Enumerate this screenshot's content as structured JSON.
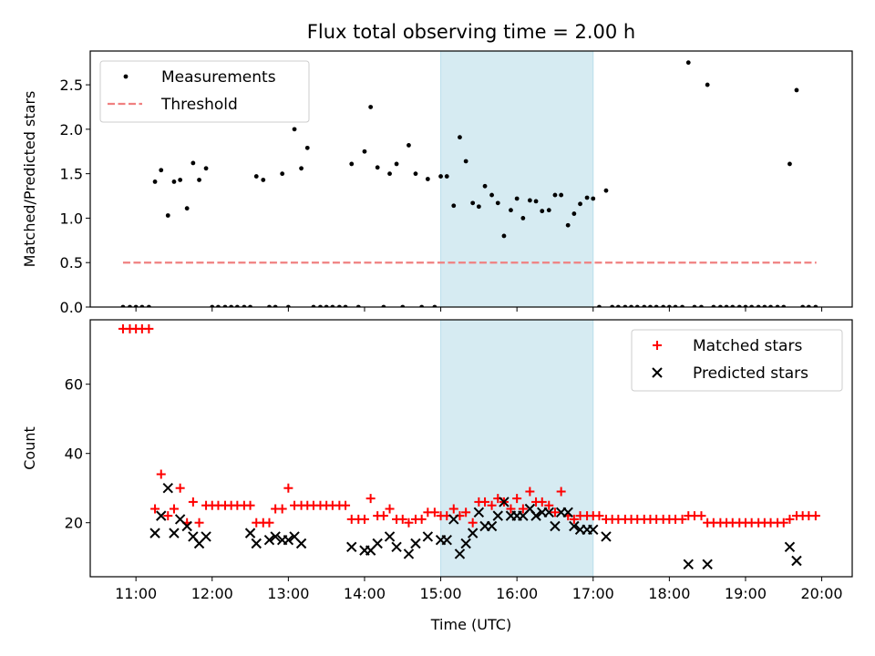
{
  "title": "Flux total observing time = 2.00 h",
  "chart_data": [
    {
      "id": "ratio",
      "type": "scatter",
      "ylabel": "Matched/Predicted stars",
      "xlabel": "",
      "xlim": [
        10.4,
        20.4
      ],
      "ylim": [
        0,
        2.88
      ],
      "yticks": [
        0.0,
        0.5,
        1.0,
        1.5,
        2.0,
        2.5
      ],
      "ytick_labels": [
        "0.0",
        "0.5",
        "1.0",
        "1.5",
        "2.0",
        "2.5"
      ],
      "shaded_region": [
        15.0,
        17.0
      ],
      "legend_position": "top-left",
      "legend": [
        "Measurements",
        "Threshold"
      ],
      "threshold": {
        "name": "Threshold",
        "y": 0.5,
        "x": [
          10.83,
          19.93
        ],
        "color": "#f08080"
      },
      "series": [
        {
          "name": "Measurements",
          "color": "#000000",
          "x": [
            10.83,
            10.92,
            11.0,
            11.08,
            11.17,
            11.25,
            11.33,
            11.42,
            11.5,
            11.58,
            11.67,
            11.75,
            11.83,
            11.92,
            12.0,
            12.08,
            12.17,
            12.25,
            12.33,
            12.42,
            12.5,
            12.58,
            12.67,
            12.75,
            12.83,
            12.92,
            13.0,
            13.08,
            13.17,
            13.25,
            13.33,
            13.42,
            13.5,
            13.58,
            13.67,
            13.75,
            13.83,
            13.92,
            14.0,
            14.08,
            14.17,
            14.25,
            14.33,
            14.42,
            14.5,
            14.58,
            14.67,
            14.75,
            14.83,
            14.92,
            15.0,
            15.08,
            15.17,
            15.25,
            15.33,
            15.42,
            15.5,
            15.58,
            15.67,
            15.75,
            15.83,
            15.92,
            16.0,
            16.08,
            16.17,
            16.25,
            16.33,
            16.42,
            16.5,
            16.58,
            16.67,
            16.75,
            16.83,
            16.92,
            17.0,
            17.08,
            17.17,
            17.25,
            17.33,
            17.42,
            17.5,
            17.58,
            17.67,
            17.75,
            17.83,
            17.92,
            18.0,
            18.08,
            18.17,
            18.25,
            18.33,
            18.42,
            18.5,
            18.58,
            18.67,
            18.75,
            18.83,
            18.92,
            19.0,
            19.08,
            19.17,
            19.25,
            19.33,
            19.42,
            19.5,
            19.58,
            19.67,
            19.75,
            19.83,
            19.92
          ],
          "y": [
            0,
            0,
            0,
            0,
            0,
            1.41,
            1.54,
            1.03,
            1.41,
            1.43,
            1.11,
            1.62,
            1.43,
            1.56,
            0,
            0,
            0,
            0,
            0,
            0,
            0,
            1.47,
            1.43,
            0,
            0,
            1.5,
            0,
            2.0,
            1.56,
            1.79,
            0,
            0,
            0,
            0,
            0,
            0,
            1.61,
            0,
            1.75,
            2.25,
            1.57,
            0,
            1.5,
            1.61,
            0,
            1.82,
            1.5,
            0,
            1.44,
            0,
            1.47,
            1.47,
            1.14,
            1.91,
            1.64,
            1.17,
            1.13,
            1.36,
            1.26,
            1.17,
            0.8,
            1.09,
            1.22,
            1.0,
            1.2,
            1.19,
            1.08,
            1.09,
            1.26,
            1.26,
            0.92,
            1.05,
            1.16,
            1.23,
            1.22,
            0,
            1.31,
            0,
            0,
            0,
            0,
            0,
            0,
            0,
            0,
            0,
            0,
            0,
            0,
            2.75,
            0,
            0,
            2.5,
            0,
            0,
            0,
            0,
            0,
            0,
            0,
            0,
            0,
            0,
            0,
            0,
            1.61,
            2.44,
            0,
            0,
            0
          ]
        }
      ]
    },
    {
      "id": "counts",
      "type": "scatter",
      "ylabel": "Count",
      "xlabel": "Time (UTC)",
      "xlim": [
        10.4,
        20.4
      ],
      "ylim": [
        4.4,
        78.6
      ],
      "yticks": [
        20,
        40,
        60
      ],
      "ytick_labels": [
        "20",
        "40",
        "60"
      ],
      "xticks": [
        11,
        12,
        13,
        14,
        15,
        16,
        17,
        18,
        19,
        20
      ],
      "xtick_labels": [
        "11:00",
        "12:00",
        "13:00",
        "14:00",
        "15:00",
        "16:00",
        "17:00",
        "18:00",
        "19:00",
        "20:00"
      ],
      "shaded_region": [
        15.0,
        17.0
      ],
      "legend_position": "top-right",
      "legend": [
        "Matched stars",
        "Predicted stars"
      ],
      "series": [
        {
          "name": "Matched stars",
          "marker": "plus",
          "color": "#ff0000",
          "x": [
            10.83,
            10.92,
            11.0,
            11.08,
            11.17,
            11.25,
            11.33,
            11.42,
            11.5,
            11.58,
            11.67,
            11.75,
            11.83,
            11.92,
            12.0,
            12.08,
            12.17,
            12.25,
            12.33,
            12.42,
            12.5,
            12.58,
            12.67,
            12.75,
            12.83,
            12.92,
            13.0,
            13.08,
            13.17,
            13.25,
            13.33,
            13.42,
            13.5,
            13.58,
            13.67,
            13.75,
            13.83,
            13.92,
            14.0,
            14.08,
            14.17,
            14.25,
            14.33,
            14.42,
            14.5,
            14.58,
            14.67,
            14.75,
            14.83,
            14.92,
            15.0,
            15.08,
            15.17,
            15.25,
            15.33,
            15.42,
            15.5,
            15.58,
            15.67,
            15.75,
            15.83,
            15.92,
            16.0,
            16.08,
            16.17,
            16.25,
            16.33,
            16.42,
            16.5,
            16.58,
            16.67,
            16.75,
            16.83,
            16.92,
            17.0,
            17.08,
            17.17,
            17.25,
            17.33,
            17.42,
            17.5,
            17.58,
            17.67,
            17.75,
            17.83,
            17.92,
            18.0,
            18.08,
            18.17,
            18.25,
            18.33,
            18.42,
            18.5,
            18.58,
            18.67,
            18.75,
            18.83,
            18.92,
            19.0,
            19.08,
            19.17,
            19.25,
            19.33,
            19.42,
            19.5,
            19.58,
            19.67,
            19.75,
            19.83,
            19.92
          ],
          "y": [
            76,
            76,
            76,
            76,
            76,
            24,
            34,
            22,
            24,
            30,
            20,
            26,
            20,
            25,
            25,
            25,
            25,
            25,
            25,
            25,
            25,
            20,
            20,
            20,
            24,
            24,
            30,
            25,
            25,
            25,
            25,
            25,
            25,
            25,
            25,
            25,
            21,
            21,
            21,
            27,
            22,
            22,
            24,
            21,
            21,
            20,
            21,
            21,
            23,
            23,
            22,
            22,
            24,
            22,
            23,
            20,
            26,
            26,
            25,
            27,
            26,
            24,
            27,
            24,
            29,
            26,
            26,
            25,
            23,
            29,
            22,
            21,
            22,
            22,
            22,
            22,
            21,
            21,
            21,
            21,
            21,
            21,
            21,
            21,
            21,
            21,
            21,
            21,
            21,
            22,
            22,
            22,
            20,
            20,
            20,
            20,
            20,
            20,
            20,
            20,
            20,
            20,
            20,
            20,
            20,
            21,
            22,
            22,
            22,
            22
          ]
        },
        {
          "name": "Predicted stars",
          "marker": "x",
          "color": "#000000",
          "x": [
            11.25,
            11.33,
            11.42,
            11.5,
            11.58,
            11.67,
            11.75,
            11.83,
            11.92,
            12.5,
            12.58,
            12.75,
            12.83,
            12.92,
            13.0,
            13.08,
            13.17,
            13.83,
            14.0,
            14.08,
            14.17,
            14.33,
            14.42,
            14.58,
            14.67,
            14.83,
            15.0,
            15.08,
            15.17,
            15.25,
            15.33,
            15.42,
            15.5,
            15.58,
            15.67,
            15.75,
            15.83,
            15.92,
            16.0,
            16.08,
            16.17,
            16.25,
            16.33,
            16.42,
            16.5,
            16.58,
            16.67,
            16.75,
            16.83,
            16.92,
            17.0,
            17.17,
            18.25,
            18.5,
            19.58,
            19.67
          ],
          "y": [
            17,
            22,
            30,
            17,
            21,
            19,
            16,
            14,
            16,
            17,
            14,
            15,
            16,
            15,
            15,
            16,
            14,
            13,
            12,
            12,
            14,
            16,
            13,
            11,
            14,
            16,
            15,
            15,
            21,
            11,
            14,
            17,
            23,
            19,
            19,
            22,
            26,
            22,
            22,
            22,
            24,
            22,
            23,
            23,
            19,
            23,
            23,
            19,
            18,
            18,
            18,
            16,
            8,
            8,
            13,
            9
          ]
        }
      ]
    }
  ]
}
